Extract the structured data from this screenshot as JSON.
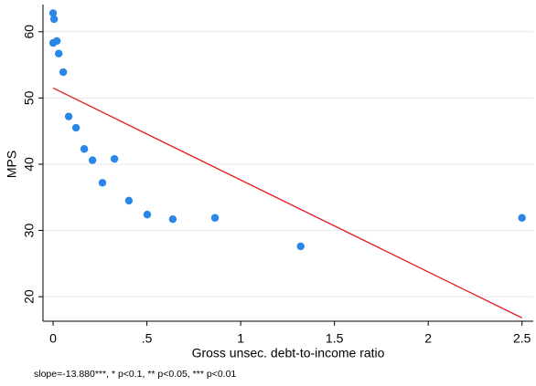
{
  "chart_data": {
    "type": "scatter",
    "xlabel": "Gross unsec. debt-to-income ratio",
    "ylabel": "MPS",
    "note": "slope=-13.880***, * p<0.1, ** p<0.05, *** p<0.01",
    "xlim": [
      -0.054,
      2.56
    ],
    "ylim": [
      16.3,
      64.1
    ],
    "xticks": [
      0,
      {
        "value": 0.5,
        "label": ".5"
      },
      1,
      1.5,
      2,
      2.5
    ],
    "yticks": [
      20,
      30,
      40,
      50,
      60
    ],
    "grid": true,
    "series": [
      {
        "type": "scatter",
        "color": "#2a86e8",
        "x": [
          0,
          0.005,
          0,
          0.02,
          0.03,
          0.054,
          0.083,
          0.122,
          0.166,
          0.21,
          0.327,
          0.263,
          0.404,
          0.502,
          0.638,
          0.863,
          1.32,
          2.5
        ],
        "values": [
          62.8,
          61.9,
          58.3,
          58.6,
          56.7,
          53.9,
          47.2,
          45.5,
          42.3,
          40.6,
          40.8,
          37.2,
          34.5,
          32.4,
          31.7,
          31.9,
          27.6,
          31.9
        ]
      },
      {
        "type": "line",
        "color": "#e41a1c",
        "x": [
          0,
          2.5
        ],
        "values": [
          51.5,
          16.8
        ]
      }
    ]
  }
}
